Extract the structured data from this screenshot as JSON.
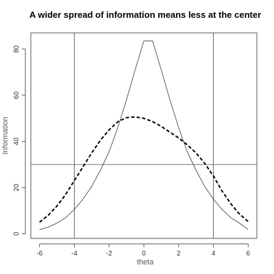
{
  "chart_data": {
    "type": "line",
    "title": "A wider spread of information means less at the center",
    "xlabel": "theta",
    "ylabel": "Information",
    "xlim": [
      -6.5,
      6.5
    ],
    "ylim": [
      -2,
      87
    ],
    "x_ticks": [
      -6,
      -4,
      -2,
      0,
      2,
      4,
      6
    ],
    "y_ticks": [
      0,
      20,
      40,
      60,
      80
    ],
    "grid": false,
    "reference_lines": {
      "vertical_x": [
        -4,
        4
      ],
      "horizontal_y": [
        30
      ]
    },
    "series": [
      {
        "style": "solid",
        "x": [
          -6,
          -5.5,
          -5,
          -4.5,
          -4,
          -3.5,
          -3,
          -2.5,
          -2,
          -1.5,
          -1,
          -0.5,
          0,
          0.5,
          1,
          1.5,
          2,
          2.5,
          3,
          3.5,
          4,
          4.5,
          5,
          5.5,
          6
        ],
        "y": [
          1.8,
          2.9,
          4.6,
          7,
          10.5,
          15,
          20.5,
          27.5,
          35.5,
          46,
          58,
          71,
          83.5,
          83.5,
          71,
          58,
          46,
          35.5,
          27.5,
          20.5,
          15,
          10.5,
          7,
          4.6,
          1.8
        ]
      },
      {
        "style": "dashed",
        "x": [
          -6,
          -5.5,
          -5,
          -4.5,
          -4,
          -3.5,
          -3,
          -2.5,
          -2,
          -1.5,
          -1,
          -0.5,
          0,
          0.5,
          1,
          1.5,
          2,
          2.5,
          3,
          3.5,
          4,
          4.5,
          5,
          5.5,
          6
        ],
        "y": [
          5,
          8,
          12,
          17,
          23,
          29,
          35,
          40.5,
          45,
          48.5,
          50.3,
          50.6,
          50,
          48.6,
          46.5,
          44,
          41.5,
          38.5,
          35,
          30.5,
          25,
          18.5,
          13,
          8.5,
          5.3
        ]
      }
    ]
  }
}
